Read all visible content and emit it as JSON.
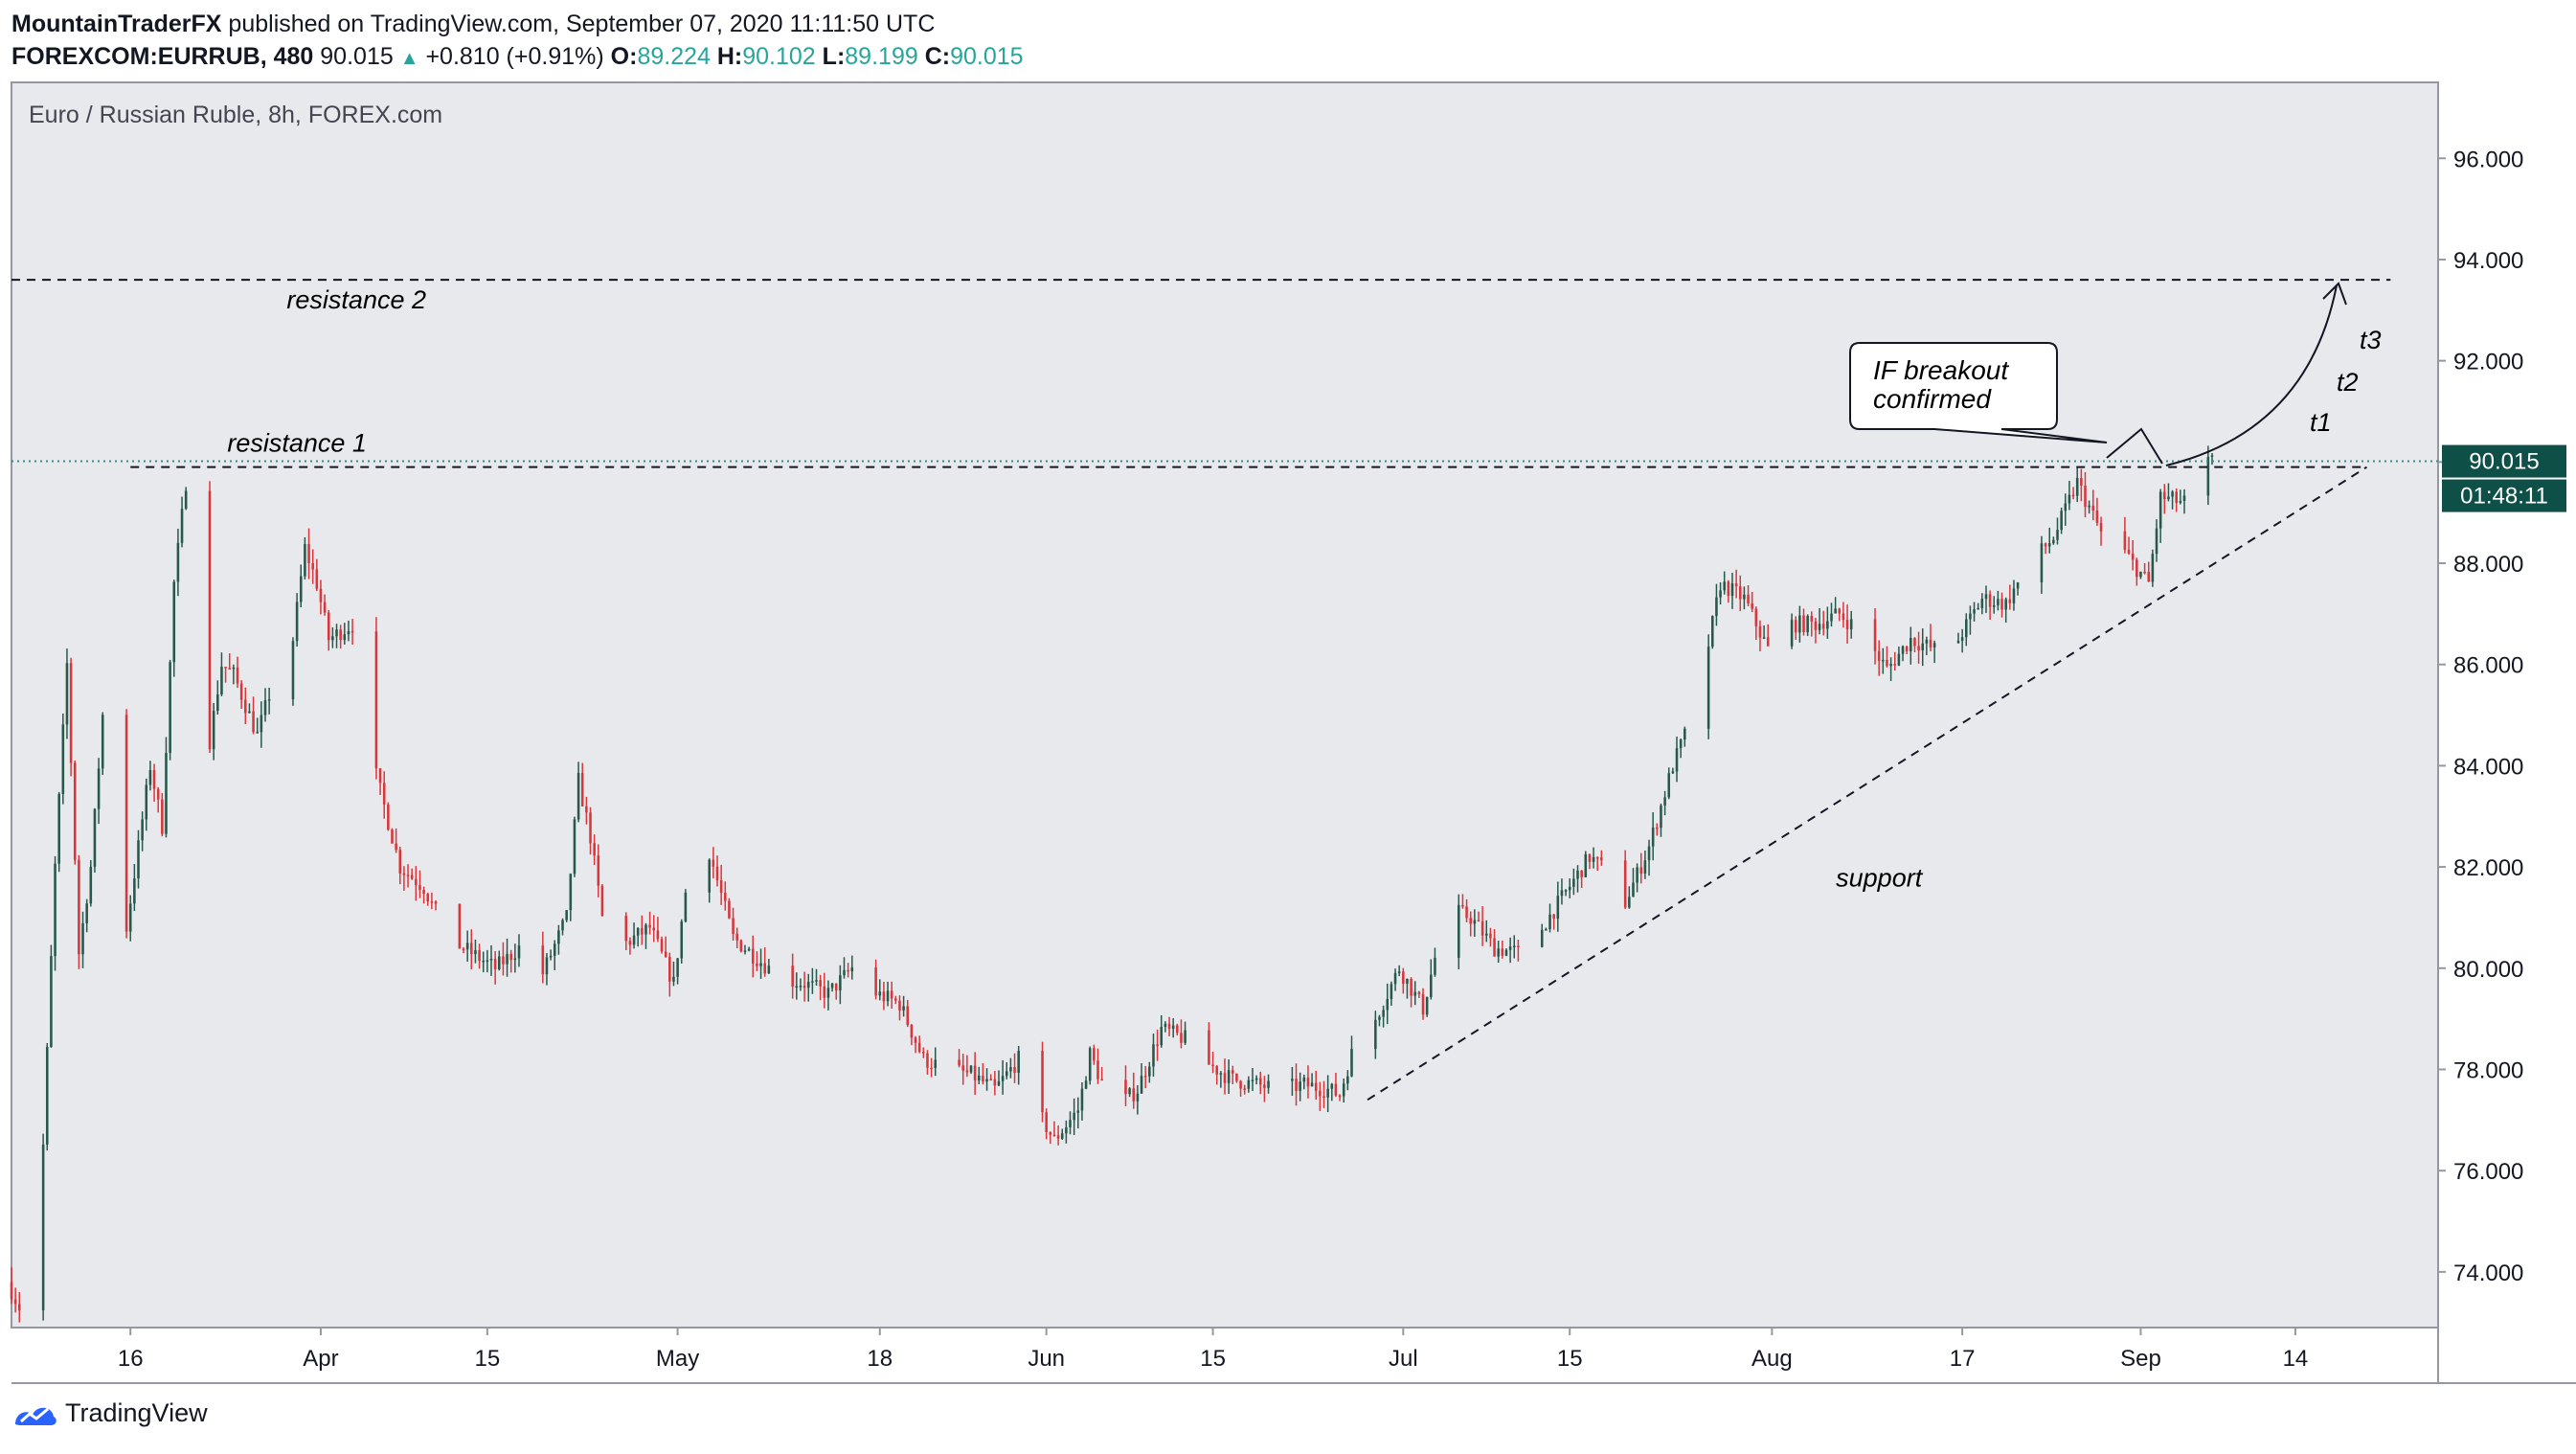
{
  "header": {
    "author": "MountainTraderFX",
    "published": "published on TradingView.com, September 07, 2020 11:11:50 UTC",
    "symbol": "FOREXCOM:EURRUB, 480",
    "last": "90.015",
    "change": "+0.810 (+0.91%)",
    "open_label": "O:",
    "open": "89.224",
    "high_label": "H:",
    "high": "90.102",
    "low_label": "L:",
    "low": "89.199",
    "close_label": "C:",
    "close": "90.015"
  },
  "footer": {
    "brand": "TradingView"
  },
  "colors": {
    "up": "#26594b",
    "down": "#d9363b",
    "price_badge": "#0e4f47",
    "plot_bg": "#e8e9ed",
    "line": "#131722",
    "last_line": "#2a8f87"
  },
  "chart_data": {
    "type": "candlestick",
    "title": "Euro / Russian Ruble, 8h, FOREX.com",
    "ylim": [
      72.9,
      97.5
    ],
    "y_ticks": [
      74,
      76,
      78,
      80,
      82,
      84,
      86,
      88,
      90,
      92,
      94,
      96
    ],
    "y_tick_labels": [
      "74.000",
      "76.000",
      "78.000",
      "80.000",
      "82.000",
      "84.000",
      "86.000",
      "88.000",
      "90.000",
      "92.000",
      "94.000",
      "96.000"
    ],
    "x_range": [
      "2020-03-06",
      "2020-09-26"
    ],
    "x_ticks": [
      {
        "date": "2020-03-16",
        "label": "16"
      },
      {
        "date": "2020-04-01",
        "label": "Apr"
      },
      {
        "date": "2020-04-15",
        "label": "15"
      },
      {
        "date": "2020-05-01",
        "label": "May"
      },
      {
        "date": "2020-05-18",
        "label": "18"
      },
      {
        "date": "2020-06-01",
        "label": "Jun"
      },
      {
        "date": "2020-06-15",
        "label": "15"
      },
      {
        "date": "2020-07-01",
        "label": "Jul"
      },
      {
        "date": "2020-07-15",
        "label": "15"
      },
      {
        "date": "2020-08-01",
        "label": "Aug"
      },
      {
        "date": "2020-08-17",
        "label": "17"
      },
      {
        "date": "2020-09-01",
        "label": "Sep"
      },
      {
        "date": "2020-09-14",
        "label": "14"
      }
    ],
    "price_path": [
      [
        "2020-03-06",
        73.8
      ],
      [
        "2020-03-07",
        73.3
      ],
      [
        "2020-03-08",
        74.4
      ],
      [
        "2020-03-09",
        76.5
      ],
      [
        "2020-03-10",
        82.0
      ],
      [
        "2020-03-11",
        86.0
      ],
      [
        "2020-03-12",
        80.3
      ],
      [
        "2020-03-13",
        82.0
      ],
      [
        "2020-03-14",
        85.0
      ],
      [
        "2020-03-16",
        80.8
      ],
      [
        "2020-03-18",
        84.0
      ],
      [
        "2020-03-19",
        82.8
      ],
      [
        "2020-03-20",
        87.6
      ],
      [
        "2020-03-21",
        89.6
      ],
      [
        "2020-03-22",
        88.0
      ],
      [
        "2020-03-23",
        84.5
      ],
      [
        "2020-03-24",
        86.0
      ],
      [
        "2020-03-25",
        85.8
      ],
      [
        "2020-03-27",
        84.6
      ],
      [
        "2020-03-28",
        85.4
      ],
      [
        "2020-03-30",
        86.5
      ],
      [
        "2020-03-31",
        88.3
      ],
      [
        "2020-04-01",
        87.6
      ],
      [
        "2020-04-02",
        86.5
      ],
      [
        "2020-04-04",
        86.8
      ],
      [
        "2020-04-06",
        83.8
      ],
      [
        "2020-04-08",
        82.0
      ],
      [
        "2020-04-10",
        81.6
      ],
      [
        "2020-04-12",
        80.6
      ],
      [
        "2020-04-14",
        80.3
      ],
      [
        "2020-04-16",
        80.0
      ],
      [
        "2020-04-18",
        80.4
      ],
      [
        "2020-04-20",
        79.9
      ],
      [
        "2020-04-22",
        81.0
      ],
      [
        "2020-04-23",
        83.7
      ],
      [
        "2020-04-24",
        82.6
      ],
      [
        "2020-04-25",
        81.0
      ],
      [
        "2020-04-27",
        80.5
      ],
      [
        "2020-04-29",
        80.8
      ],
      [
        "2020-05-01",
        79.7
      ],
      [
        "2020-05-02",
        81.5
      ],
      [
        "2020-05-03",
        82.8
      ],
      [
        "2020-05-04",
        82.3
      ],
      [
        "2020-05-06",
        80.6
      ],
      [
        "2020-05-08",
        80.2
      ],
      [
        "2020-05-10",
        79.8
      ],
      [
        "2020-05-12",
        79.7
      ],
      [
        "2020-05-14",
        79.5
      ],
      [
        "2020-05-16",
        80.0
      ],
      [
        "2020-05-18",
        79.5
      ],
      [
        "2020-05-20",
        79.3
      ],
      [
        "2020-05-22",
        78.2
      ],
      [
        "2020-05-24",
        78.0
      ],
      [
        "2020-05-26",
        77.9
      ],
      [
        "2020-05-28",
        77.6
      ],
      [
        "2020-05-30",
        78.2
      ],
      [
        "2020-06-01",
        77.0
      ],
      [
        "2020-06-02",
        76.6
      ],
      [
        "2020-06-04",
        77.2
      ],
      [
        "2020-06-05",
        78.3
      ],
      [
        "2020-06-07",
        77.2
      ],
      [
        "2020-06-09",
        77.6
      ],
      [
        "2020-06-11",
        78.8
      ],
      [
        "2020-06-13",
        78.6
      ],
      [
        "2020-06-15",
        78.1
      ],
      [
        "2020-06-17",
        77.8
      ],
      [
        "2020-06-19",
        77.7
      ],
      [
        "2020-06-21",
        77.6
      ],
      [
        "2020-06-23",
        77.7
      ],
      [
        "2020-06-25",
        77.6
      ],
      [
        "2020-06-26",
        77.5
      ],
      [
        "2020-06-27",
        78.3
      ],
      [
        "2020-06-29",
        79.0
      ],
      [
        "2020-07-01",
        80.0
      ],
      [
        "2020-07-03",
        79.2
      ],
      [
        "2020-07-05",
        81.2
      ],
      [
        "2020-07-07",
        81.0
      ],
      [
        "2020-07-09",
        80.4
      ],
      [
        "2020-07-11",
        80.3
      ],
      [
        "2020-07-13",
        80.8
      ],
      [
        "2020-07-15",
        81.5
      ],
      [
        "2020-07-17",
        82.2
      ],
      [
        "2020-07-19",
        81.8
      ],
      [
        "2020-07-20",
        81.3
      ],
      [
        "2020-07-22",
        82.4
      ],
      [
        "2020-07-24",
        84.0
      ],
      [
        "2020-07-26",
        85.2
      ],
      [
        "2020-07-28",
        87.6
      ],
      [
        "2020-07-30",
        87.3
      ],
      [
        "2020-08-01",
        86.3
      ],
      [
        "2020-08-03",
        86.8
      ],
      [
        "2020-08-05",
        86.8
      ],
      [
        "2020-08-07",
        87.0
      ],
      [
        "2020-08-09",
        86.6
      ],
      [
        "2020-08-11",
        85.9
      ],
      [
        "2020-08-13",
        86.5
      ],
      [
        "2020-08-15",
        86.3
      ],
      [
        "2020-08-17",
        86.5
      ],
      [
        "2020-08-19",
        87.3
      ],
      [
        "2020-08-21",
        87.2
      ],
      [
        "2020-08-23",
        88.0
      ],
      [
        "2020-08-25",
        88.5
      ],
      [
        "2020-08-27",
        89.6
      ],
      [
        "2020-08-29",
        88.6
      ],
      [
        "2020-08-31",
        88.2
      ],
      [
        "2020-09-02",
        87.6
      ],
      [
        "2020-09-03",
        89.3
      ],
      [
        "2020-09-05",
        89.2
      ],
      [
        "2020-09-06",
        89.4
      ],
      [
        "2020-09-07",
        90.0
      ]
    ],
    "last_price": 90.015,
    "last_price_label": "90.015",
    "countdown_label": "01:48:11",
    "annotations": {
      "resistance_1": {
        "label": "resistance 1",
        "y": 89.9,
        "label_date": "2020-03-30"
      },
      "resistance_2": {
        "label": "resistance 2",
        "y": 93.6,
        "label_date": "2020-04-04"
      },
      "support": {
        "label": "support",
        "from": [
          "2020-06-28",
          77.4
        ],
        "to": [
          "2020-09-20",
          89.9
        ],
        "label_date": "2020-08-10",
        "label_y": 81.8
      },
      "callout": {
        "lines": [
          "IF breakout",
          "confirmed"
        ]
      },
      "targets": [
        "t1",
        "t2",
        "t3"
      ]
    }
  }
}
